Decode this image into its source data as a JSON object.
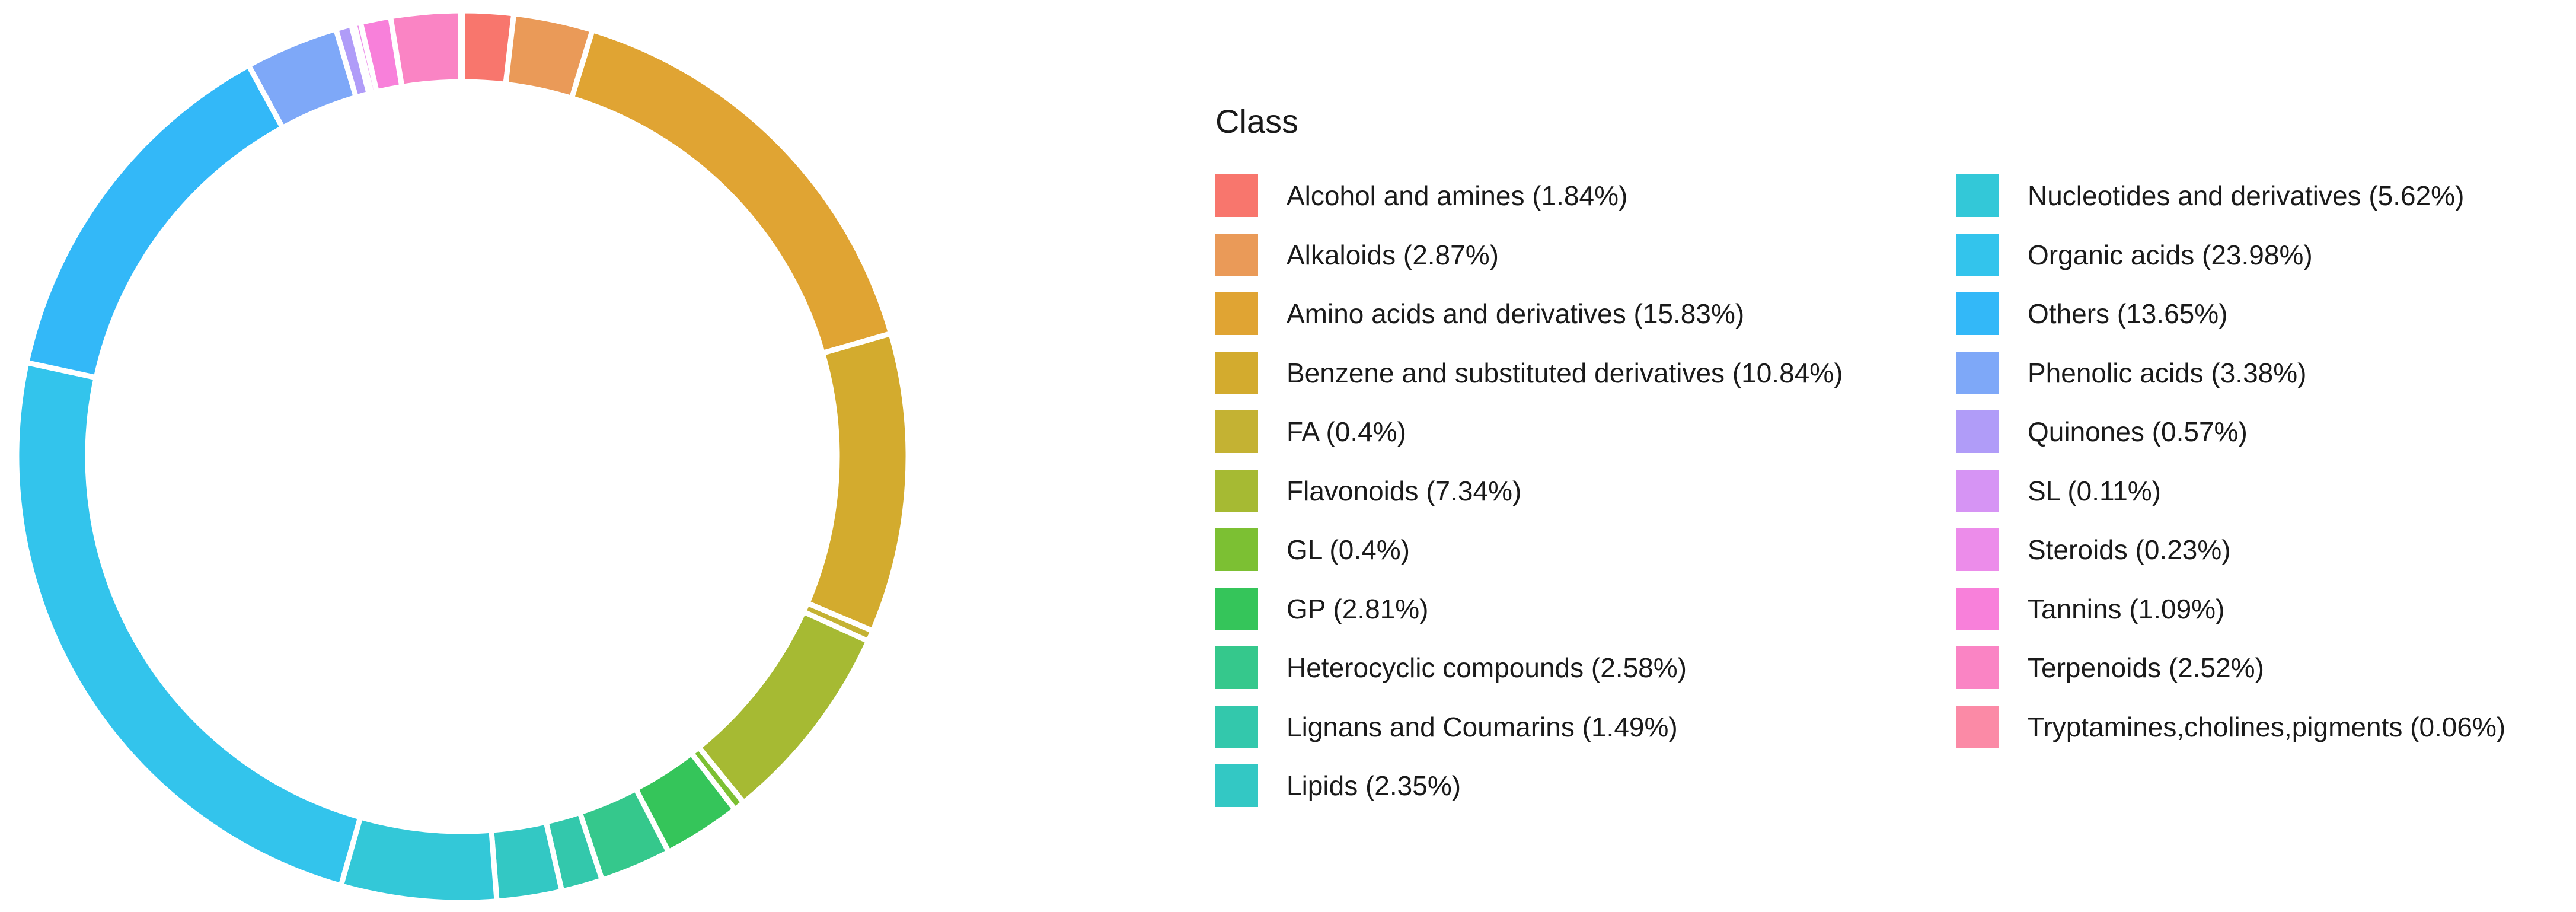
{
  "chart_data": {
    "type": "pie",
    "style": "donut",
    "legend_title": "Class",
    "legend_position": "right",
    "slices": [
      {
        "label": "Alcohol and amines (1.84%)",
        "value": 1.84,
        "color": "#F8766D"
      },
      {
        "label": "Alkaloids (2.87%)",
        "value": 2.87,
        "color": "#EA9A58"
      },
      {
        "label": "Amino acids and derivatives (15.83%)",
        "value": 15.83,
        "color": "#E0A433"
      },
      {
        "label": "Benzene and substituted derivatives (10.84%)",
        "value": 10.84,
        "color": "#D3AB2E"
      },
      {
        "label": "FA (0.4%)",
        "value": 0.4,
        "color": "#C4B233"
      },
      {
        "label": "Flavonoids (7.34%)",
        "value": 7.34,
        "color": "#A6BA33"
      },
      {
        "label": "GL (0.4%)",
        "value": 0.4,
        "color": "#7CC033"
      },
      {
        "label": "GP (2.81%)",
        "value": 2.81,
        "color": "#35C55A"
      },
      {
        "label": "Heterocyclic compounds (2.58%)",
        "value": 2.58,
        "color": "#35C88C"
      },
      {
        "label": "Lignans and Coumarins (1.49%)",
        "value": 1.49,
        "color": "#33C8AC"
      },
      {
        "label": "Lipids (2.35%)",
        "value": 2.35,
        "color": "#33C8C4"
      },
      {
        "label": "Nucleotides and derivatives (5.62%)",
        "value": 5.62,
        "color": "#33C8D8"
      },
      {
        "label": "Organic acids (23.98%)",
        "value": 23.98,
        "color": "#33C4EC"
      },
      {
        "label": "Others (13.65%)",
        "value": 13.65,
        "color": "#33B8F8"
      },
      {
        "label": "Phenolic acids (3.38%)",
        "value": 3.38,
        "color": "#7EA8F8"
      },
      {
        "label": "Quinones (0.57%)",
        "value": 0.57,
        "color": "#B09CF8"
      },
      {
        "label": "SL (0.11%)",
        "value": 0.11,
        "color": "#D694F4"
      },
      {
        "label": "Steroids (0.23%)",
        "value": 0.23,
        "color": "#EC8CEA"
      },
      {
        "label": "Tannins (1.09%)",
        "value": 1.09,
        "color": "#F880DA"
      },
      {
        "label": "Terpenoids (2.52%)",
        "value": 2.52,
        "color": "#FA84C4"
      },
      {
        "label": "Tryptamines,cholines,pigments (0.06%)",
        "value": 0.06,
        "color": "#FB8AA6"
      }
    ]
  }
}
